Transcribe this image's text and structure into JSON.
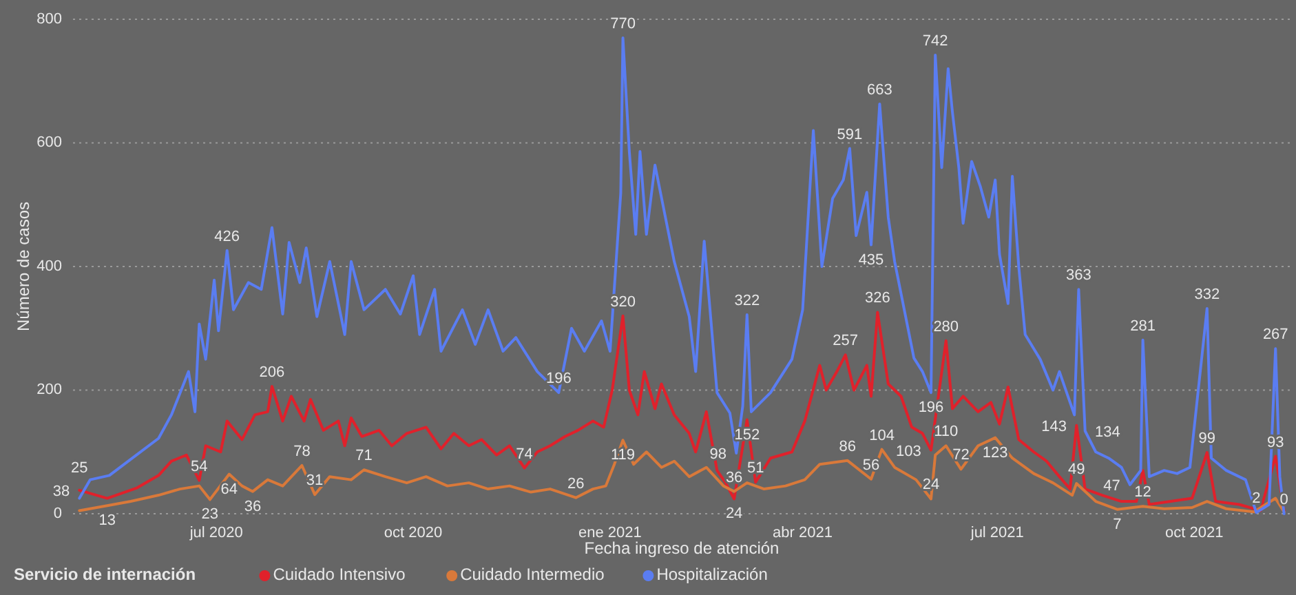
{
  "chart_data": {
    "type": "line",
    "xlabel": "Fecha ingreso de atención",
    "ylabel": "Número de casos",
    "legend_title": "Servicio de internación",
    "legend": "bottom left",
    "grid": "y",
    "marker": "none",
    "line_style": "solid",
    "xlim": [
      "2020-04-25",
      "2021-11-15"
    ],
    "xticks": [
      {
        "value": "2020-07-01",
        "label": "jul 2020"
      },
      {
        "value": "2020-10-01",
        "label": "oct 2020"
      },
      {
        "value": "2021-01-01",
        "label": "ene 2021"
      },
      {
        "value": "2021-04-01",
        "label": "abr 2021"
      },
      {
        "value": "2021-07-01",
        "label": "jul 2021"
      },
      {
        "value": "2021-10-01",
        "label": "oct 2021"
      }
    ],
    "ylim": [
      0,
      800
    ],
    "yticks": [
      0,
      200,
      400,
      600,
      800
    ],
    "series": [
      {
        "name": "Cuidado Intensivo",
        "color": "#e0212b",
        "x": [
          "2020-04-28",
          "2020-05-11",
          "2020-05-25",
          "2020-06-04",
          "2020-06-10",
          "2020-06-17",
          "2020-06-23",
          "2020-06-26",
          "2020-07-03",
          "2020-07-06",
          "2020-07-13",
          "2020-07-19",
          "2020-07-25",
          "2020-07-27",
          "2020-08-01",
          "2020-08-05",
          "2020-08-11",
          "2020-08-14",
          "2020-08-20",
          "2020-08-27",
          "2020-08-30",
          "2020-09-02",
          "2020-09-07",
          "2020-09-15",
          "2020-09-21",
          "2020-09-28",
          "2020-10-07",
          "2020-10-14",
          "2020-10-20",
          "2020-10-27",
          "2020-11-02",
          "2020-11-09",
          "2020-11-15",
          "2020-11-22",
          "2020-11-28",
          "2020-12-04",
          "2020-12-11",
          "2020-12-17",
          "2020-12-24",
          "2020-12-29",
          "2021-01-02",
          "2021-01-07",
          "2021-01-10",
          "2021-01-14",
          "2021-01-17",
          "2021-01-22",
          "2021-01-25",
          "2021-01-31",
          "2021-02-07",
          "2021-02-10",
          "2021-02-15",
          "2021-02-20",
          "2021-02-24",
          "2021-02-28",
          "2021-03-06",
          "2021-03-10",
          "2021-03-17",
          "2021-03-27",
          "2021-04-02",
          "2021-04-09",
          "2021-04-12",
          "2021-04-17",
          "2021-04-21",
          "2021-04-25",
          "2021-05-01",
          "2021-05-03",
          "2021-05-06",
          "2021-05-11",
          "2021-05-17",
          "2021-05-22",
          "2021-05-27",
          "2021-05-31",
          "2021-06-07",
          "2021-06-10",
          "2021-06-15",
          "2021-06-22",
          "2021-06-28",
          "2021-07-02",
          "2021-07-06",
          "2021-07-11",
          "2021-07-18",
          "2021-07-24",
          "2021-07-30",
          "2021-08-04",
          "2021-08-07",
          "2021-08-11",
          "2021-08-19",
          "2021-08-28",
          "2021-09-04",
          "2021-09-07",
          "2021-09-10",
          "2021-09-20",
          "2021-09-30",
          "2021-10-07",
          "2021-10-11",
          "2021-10-22",
          "2021-11-01",
          "2021-11-08",
          "2021-11-12"
        ],
        "values": [
          38,
          25,
          42,
          62,
          85,
          95,
          54,
          110,
          100,
          150,
          120,
          160,
          165,
          206,
          150,
          190,
          150,
          185,
          135,
          150,
          110,
          155,
          125,
          135,
          110,
          130,
          140,
          105,
          130,
          110,
          120,
          95,
          110,
          74,
          100,
          110,
          125,
          135,
          150,
          140,
          200,
          320,
          200,
          160,
          230,
          170,
          210,
          160,
          130,
          100,
          165,
          70,
          50,
          24,
          152,
          51,
          90,
          100,
          150,
          240,
          200,
          230,
          257,
          200,
          240,
          190,
          326,
          210,
          190,
          140,
          130,
          103,
          280,
          170,
          190,
          165,
          180,
          145,
          205,
          120,
          100,
          85,
          60,
          40,
          143,
          40,
          30,
          20,
          20,
          70,
          15,
          20,
          25,
          99,
          20,
          15,
          5,
          93,
          5
        ],
        "value_labels": [
          "38",
          null,
          null,
          null,
          null,
          null,
          "54",
          null,
          null,
          null,
          null,
          null,
          null,
          "206",
          null,
          null,
          null,
          null,
          null,
          null,
          null,
          null,
          null,
          null,
          null,
          null,
          null,
          null,
          null,
          null,
          null,
          null,
          null,
          "74",
          null,
          null,
          null,
          null,
          null,
          null,
          null,
          "320",
          null,
          null,
          null,
          null,
          null,
          null,
          null,
          null,
          null,
          null,
          null,
          "24",
          "152",
          "51",
          null,
          null,
          null,
          null,
          null,
          null,
          "257",
          null,
          null,
          null,
          "326",
          null,
          null,
          null,
          null,
          "103",
          "280",
          null,
          null,
          null,
          null,
          null,
          null,
          null,
          null,
          null,
          null,
          null,
          "143",
          null,
          null,
          null,
          null,
          null,
          null,
          null,
          null,
          "99",
          null,
          null,
          null,
          "93",
          null
        ]
      },
      {
        "name": "Cuidado Intermedio",
        "color": "#d9793a",
        "x": [
          "2020-04-28",
          "2020-05-11",
          "2020-05-22",
          "2020-06-04",
          "2020-06-14",
          "2020-06-23",
          "2020-06-28",
          "2020-07-07",
          "2020-07-13",
          "2020-07-18",
          "2020-07-25",
          "2020-08-01",
          "2020-08-10",
          "2020-08-16",
          "2020-08-23",
          "2020-09-02",
          "2020-09-08",
          "2020-09-18",
          "2020-09-28",
          "2020-10-07",
          "2020-10-17",
          "2020-10-27",
          "2020-11-05",
          "2020-11-15",
          "2020-11-25",
          "2020-12-04",
          "2020-12-16",
          "2020-12-24",
          "2020-12-30",
          "2021-01-03",
          "2021-01-07",
          "2021-01-12",
          "2021-01-18",
          "2021-01-25",
          "2021-01-31",
          "2021-02-07",
          "2021-02-15",
          "2021-02-23",
          "2021-02-28",
          "2021-03-06",
          "2021-03-14",
          "2021-03-24",
          "2021-04-02",
          "2021-04-09",
          "2021-04-22",
          "2021-05-03",
          "2021-05-08",
          "2021-05-14",
          "2021-05-24",
          "2021-05-31",
          "2021-06-02",
          "2021-06-07",
          "2021-06-14",
          "2021-06-22",
          "2021-06-30",
          "2021-07-08",
          "2021-07-18",
          "2021-07-27",
          "2021-08-05",
          "2021-08-07",
          "2021-08-16",
          "2021-08-26",
          "2021-09-07",
          "2021-09-17",
          "2021-09-30",
          "2021-10-07",
          "2021-10-16",
          "2021-10-29",
          "2021-11-08",
          "2021-11-12"
        ],
        "values": [
          5,
          13,
          20,
          30,
          40,
          45,
          23,
          64,
          45,
          36,
          55,
          45,
          78,
          31,
          60,
          55,
          71,
          60,
          50,
          60,
          45,
          50,
          40,
          45,
          35,
          40,
          26,
          40,
          45,
          80,
          119,
          80,
          100,
          75,
          85,
          60,
          75,
          45,
          36,
          50,
          40,
          45,
          55,
          80,
          86,
          56,
          104,
          75,
          55,
          24,
          95,
          110,
          72,
          110,
          123,
          90,
          65,
          50,
          30,
          49,
          20,
          7,
          12,
          8,
          10,
          20,
          8,
          3,
          25,
          3
        ],
        "value_labels": [
          null,
          "13",
          null,
          null,
          null,
          null,
          "23",
          "64",
          null,
          "36",
          null,
          null,
          "78",
          "31",
          null,
          null,
          "71",
          null,
          null,
          null,
          null,
          null,
          null,
          null,
          null,
          null,
          "26",
          null,
          null,
          null,
          "119",
          null,
          null,
          null,
          null,
          null,
          null,
          null,
          "36",
          null,
          null,
          null,
          null,
          null,
          "86",
          "56",
          "104",
          null,
          null,
          "24",
          null,
          "110",
          "72",
          null,
          "123",
          null,
          null,
          null,
          null,
          "49",
          null,
          "7",
          "12",
          null,
          null,
          null,
          null,
          null,
          null,
          null
        ]
      },
      {
        "name": "Hospitalización",
        "color": "#5a7df2",
        "x": [
          "2020-04-28",
          "2020-05-03",
          "2020-05-12",
          "2020-05-25",
          "2020-06-04",
          "2020-06-10",
          "2020-06-18",
          "2020-06-21",
          "2020-06-23",
          "2020-06-26",
          "2020-06-30",
          "2020-07-02",
          "2020-07-06",
          "2020-07-09",
          "2020-07-16",
          "2020-07-22",
          "2020-07-27",
          "2020-08-01",
          "2020-08-04",
          "2020-08-09",
          "2020-08-12",
          "2020-08-17",
          "2020-08-23",
          "2020-08-30",
          "2020-09-02",
          "2020-09-08",
          "2020-09-18",
          "2020-09-25",
          "2020-10-01",
          "2020-10-04",
          "2020-10-11",
          "2020-10-14",
          "2020-10-24",
          "2020-10-30",
          "2020-11-05",
          "2020-11-12",
          "2020-11-18",
          "2020-11-28",
          "2020-12-08",
          "2020-12-14",
          "2020-12-20",
          "2020-12-28",
          "2021-01-01",
          "2021-01-06",
          "2021-01-07",
          "2021-01-10",
          "2021-01-13",
          "2021-01-15",
          "2021-01-18",
          "2021-01-22",
          "2021-01-31",
          "2021-02-07",
          "2021-02-10",
          "2021-02-14",
          "2021-02-20",
          "2021-02-26",
          "2021-03-01",
          "2021-03-04",
          "2021-03-06",
          "2021-03-08",
          "2021-03-17",
          "2021-03-27",
          "2021-04-01",
          "2021-04-06",
          "2021-04-10",
          "2021-04-15",
          "2021-04-20",
          "2021-04-23",
          "2021-04-26",
          "2021-05-01",
          "2021-05-03",
          "2021-05-07",
          "2021-05-11",
          "2021-05-14",
          "2021-05-23",
          "2021-05-27",
          "2021-05-31",
          "2021-06-02",
          "2021-06-05",
          "2021-06-08",
          "2021-06-10",
          "2021-06-13",
          "2021-06-15",
          "2021-06-19",
          "2021-06-23",
          "2021-06-27",
          "2021-06-30",
          "2021-07-02",
          "2021-07-06",
          "2021-07-08",
          "2021-07-11",
          "2021-07-14",
          "2021-07-21",
          "2021-07-27",
          "2021-07-30",
          "2021-08-06",
          "2021-08-08",
          "2021-08-11",
          "2021-08-16",
          "2021-08-22",
          "2021-08-28",
          "2021-09-01",
          "2021-09-06",
          "2021-09-07",
          "2021-09-10",
          "2021-09-17",
          "2021-09-23",
          "2021-09-29",
          "2021-10-07",
          "2021-10-09",
          "2021-10-16",
          "2021-10-25",
          "2021-10-30",
          "2021-11-05",
          "2021-11-08",
          "2021-11-10",
          "2021-11-12"
        ],
        "values": [
          25,
          55,
          62,
          96,
          122,
          160,
          230,
          165,
          307,
          250,
          378,
          296,
          426,
          330,
          374,
          363,
          463,
          323,
          439,
          374,
          430,
          319,
          408,
          290,
          408,
          330,
          363,
          323,
          385,
          290,
          363,
          263,
          330,
          274,
          330,
          263,
          285,
          230,
          196,
          300,
          263,
          312,
          263,
          519,
          770,
          586,
          452,
          586,
          452,
          564,
          408,
          319,
          230,
          441,
          196,
          163,
          98,
          174,
          322,
          165,
          196,
          250,
          330,
          620,
          400,
          510,
          540,
          591,
          450,
          520,
          435,
          663,
          480,
          408,
          252,
          230,
          196,
          742,
          560,
          720,
          650,
          560,
          470,
          570,
          530,
          480,
          540,
          420,
          340,
          546,
          400,
          290,
          250,
          200,
          230,
          160,
          363,
          134,
          100,
          90,
          75,
          47,
          70,
          281,
          60,
          70,
          65,
          75,
          332,
          90,
          70,
          55,
          2,
          15,
          267,
          60,
          0
        ],
        "value_labels": [
          "25",
          null,
          null,
          null,
          null,
          null,
          null,
          null,
          null,
          null,
          null,
          null,
          "426",
          null,
          null,
          null,
          null,
          null,
          null,
          null,
          null,
          null,
          null,
          null,
          null,
          null,
          null,
          null,
          null,
          null,
          null,
          null,
          null,
          null,
          null,
          null,
          null,
          null,
          "196",
          null,
          null,
          null,
          null,
          null,
          "770",
          null,
          null,
          null,
          null,
          null,
          null,
          null,
          null,
          null,
          null,
          null,
          "98",
          null,
          "322",
          null,
          null,
          null,
          null,
          null,
          null,
          null,
          null,
          "591",
          null,
          null,
          "435",
          "663",
          null,
          null,
          null,
          null,
          "196",
          "742",
          null,
          null,
          null,
          null,
          null,
          null,
          null,
          null,
          null,
          null,
          null,
          null,
          null,
          null,
          null,
          null,
          null,
          null,
          "363",
          "134",
          null,
          null,
          null,
          "47",
          null,
          "281",
          null,
          null,
          null,
          null,
          "332",
          null,
          null,
          null,
          "2",
          null,
          "267",
          null,
          "0"
        ]
      }
    ]
  }
}
